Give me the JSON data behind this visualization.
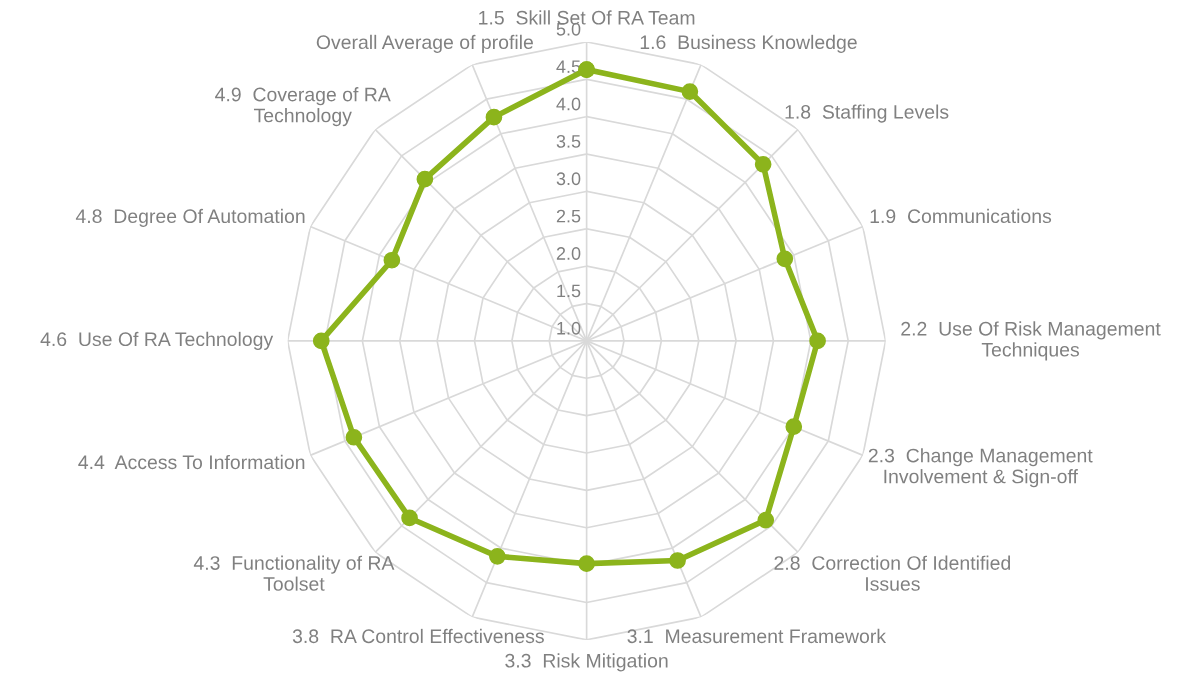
{
  "chart_data": {
    "type": "radar",
    "categories": [
      "1.5  Skill Set Of RA Team",
      "1.6  Business Knowledge",
      "1.8  Staffing Levels",
      "1.9  Communications",
      "2.2  Use Of Risk Management\nTechniques",
      "2.3  Change Management\nInvolvement & Sign-off",
      "2.8  Correction Of Identified\nIssues",
      "3.1  Measurement Framework",
      "3.3  Risk Mitigation",
      "3.8  RA Control Effectiveness",
      "4.3  Functionality of RA\nToolset",
      "4.4  Access To Information",
      "4.6  Use Of RA Technology",
      "4.8  Degree Of Automation",
      "4.9  Coverage of RA\nTechnology",
      "Overall Average of profile"
    ],
    "series": [
      {
        "color": "#8cb41c",
        "values": [
          4.63,
          4.61,
          4.34,
          3.87,
          4.09,
          4.0,
          4.39,
          4.18,
          3.98,
          4.12,
          4.35,
          4.37,
          4.55,
          3.82,
          4.06,
          4.24
        ]
      }
    ],
    "ylim": [
      1,
      5
    ],
    "yticks": [
      {
        "value": 1,
        "label": "1.0"
      },
      1.5,
      {
        "value": 2,
        "label": "2.0"
      },
      2.5,
      {
        "value": 3,
        "label": "3.0"
      },
      3.5,
      {
        "value": 4,
        "label": "4.0"
      },
      4.5,
      {
        "value": 5,
        "label": "5.0"
      }
    ],
    "grid": true,
    "marker": "circle",
    "line_style": "solid",
    "legend": false
  }
}
